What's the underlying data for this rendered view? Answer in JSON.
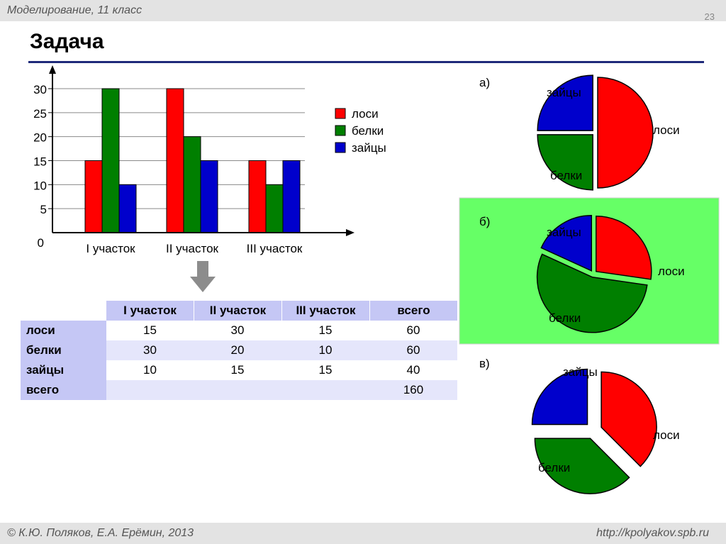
{
  "header": {
    "course": "Моделирование, 11 класс",
    "page_number": "23",
    "title": "Задача"
  },
  "footer": {
    "left": "© К.Ю. Поляков, Е.А. Ерёмин, 2013",
    "right": "http://kpolyakov.spb.ru"
  },
  "colors": {
    "лоси": "#ff0000",
    "белки": "#007f00",
    "зайцы": "#0000cc",
    "highlight": "#66ff66",
    "table_header": "#c5c7f5"
  },
  "chart_data": [
    {
      "type": "bar",
      "categories": [
        "I участок",
        "II участок",
        "III участок"
      ],
      "series": [
        {
          "name": "лоси",
          "values": [
            15,
            30,
            15
          ]
        },
        {
          "name": "белки",
          "values": [
            30,
            20,
            10
          ]
        },
        {
          "name": "зайцы",
          "values": [
            10,
            15,
            15
          ]
        }
      ],
      "yticks": [
        "0",
        "5",
        "10",
        "15",
        "20",
        "25",
        "30"
      ],
      "ylim": [
        0,
        30
      ],
      "grid": true,
      "legend_position": "right"
    },
    {
      "type": "pie",
      "label": "а)",
      "slices": [
        {
          "name": "лоси",
          "value": 50
        },
        {
          "name": "белки",
          "value": 25
        },
        {
          "name": "зайцы",
          "value": 25
        }
      ]
    },
    {
      "type": "pie",
      "label": "б)",
      "highlighted": true,
      "slices": [
        {
          "name": "лоси",
          "value": 15
        },
        {
          "name": "белки",
          "value": 30
        },
        {
          "name": "зайцы",
          "value": 10
        }
      ]
    },
    {
      "type": "pie",
      "label": "в)",
      "slices": [
        {
          "name": "лоси",
          "value": 60
        },
        {
          "name": "белки",
          "value": 60
        },
        {
          "name": "зайцы",
          "value": 40
        }
      ]
    }
  ],
  "table": {
    "columns": [
      "I участок",
      "II участок",
      "III участок",
      "всего"
    ],
    "rows": [
      {
        "label": "лоси",
        "values": [
          "15",
          "30",
          "15",
          "60"
        ]
      },
      {
        "label": "белки",
        "values": [
          "30",
          "20",
          "10",
          "60"
        ]
      },
      {
        "label": "зайцы",
        "values": [
          "10",
          "15",
          "15",
          "40"
        ]
      },
      {
        "label": "всего",
        "values": [
          "",
          "",
          "",
          "160"
        ]
      }
    ]
  }
}
